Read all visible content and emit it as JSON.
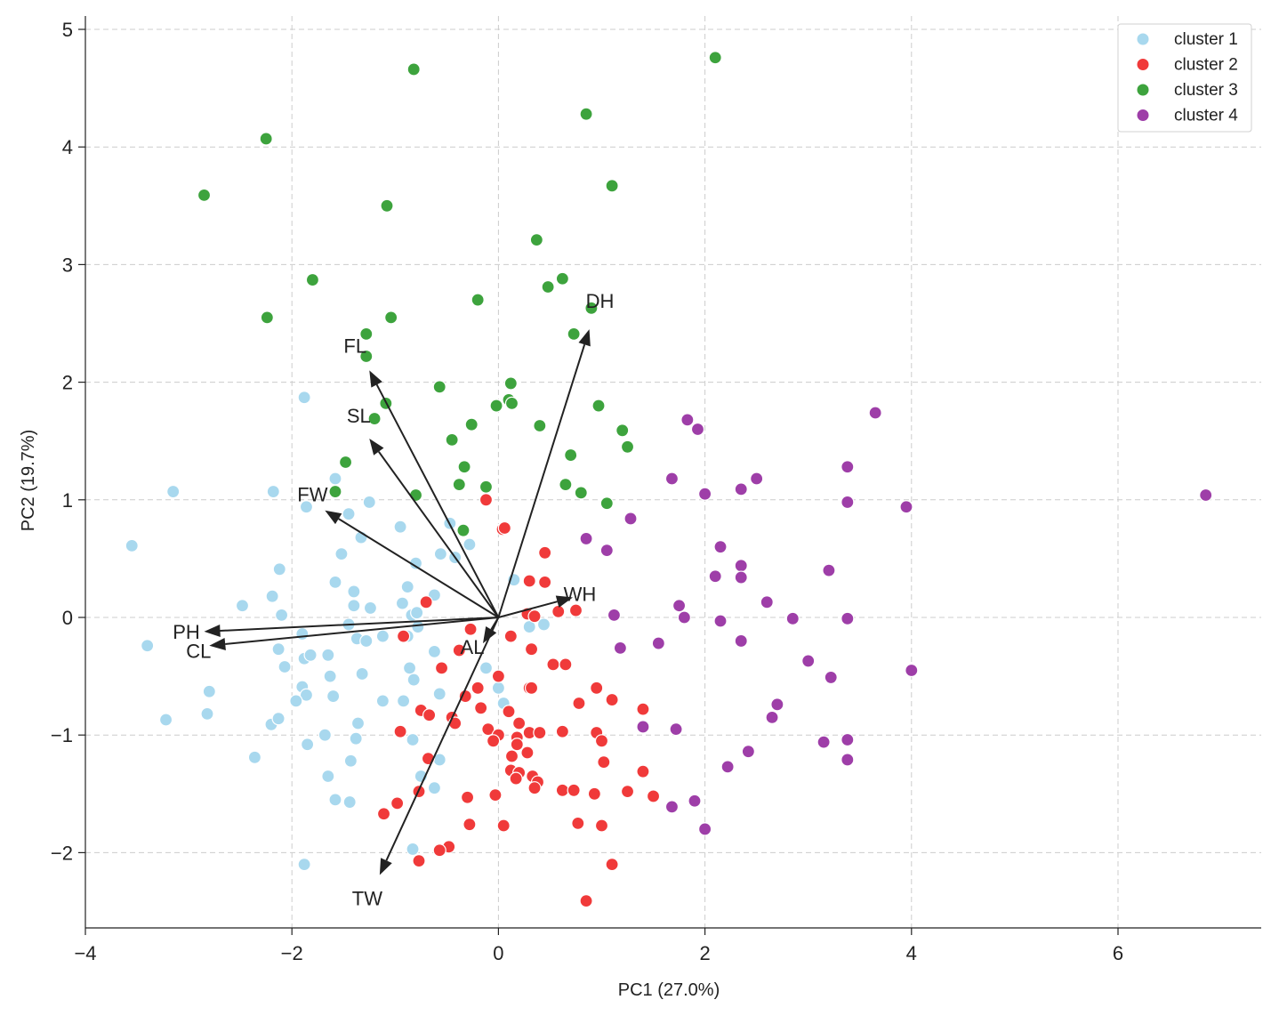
{
  "chart_data": {
    "type": "scatter",
    "title": "",
    "xlabel": "PC1 (27.0%)",
    "ylabel": "PC2 (19.7%)",
    "xlim": [
      -4,
      7.4
    ],
    "ylim": [
      -2.6,
      5.1
    ],
    "xticks": [
      -4,
      -2,
      0,
      2,
      4,
      6
    ],
    "xtick_labels": [
      "−4",
      "−2",
      "0",
      "2",
      "4",
      "6"
    ],
    "yticks": [
      -2,
      -1,
      0,
      1,
      2,
      3,
      4,
      5
    ],
    "ytick_labels": [
      "−2",
      "−1",
      "0",
      "1",
      "2",
      "3",
      "4",
      "5"
    ],
    "grid": true,
    "legend_position": "top-right",
    "series": [
      {
        "name": "cluster 1",
        "color": "#a8d8ee",
        "points": [
          [
            -3.55,
            0.61
          ],
          [
            -3.4,
            -0.24
          ],
          [
            -3.15,
            1.07
          ],
          [
            -3.22,
            -0.87
          ],
          [
            -2.82,
            -0.82
          ],
          [
            -2.8,
            -0.63
          ],
          [
            -2.48,
            0.1
          ],
          [
            -2.36,
            -1.19
          ],
          [
            -2.18,
            1.07
          ],
          [
            -2.19,
            0.18
          ],
          [
            -2.12,
            0.41
          ],
          [
            -2.1,
            0.02
          ],
          [
            -2.13,
            -0.27
          ],
          [
            -2.07,
            -0.42
          ],
          [
            -2.2,
            -0.91
          ],
          [
            -2.13,
            -0.86
          ],
          [
            -1.88,
            1.87
          ],
          [
            -1.86,
            0.94
          ],
          [
            -1.9,
            -0.14
          ],
          [
            -1.88,
            -0.35
          ],
          [
            -1.82,
            -0.32
          ],
          [
            -1.9,
            -0.59
          ],
          [
            -1.86,
            -0.66
          ],
          [
            -1.96,
            -0.71
          ],
          [
            -1.85,
            -1.08
          ],
          [
            -1.88,
            -2.1
          ],
          [
            -1.68,
            -1.0
          ],
          [
            -1.65,
            -0.32
          ],
          [
            -1.63,
            -0.5
          ],
          [
            -1.6,
            -0.67
          ],
          [
            -1.58,
            1.18
          ],
          [
            -1.58,
            0.3
          ],
          [
            -1.52,
            0.54
          ],
          [
            -1.65,
            -1.35
          ],
          [
            -1.58,
            -1.55
          ],
          [
            -1.45,
            0.88
          ],
          [
            -1.4,
            0.22
          ],
          [
            -1.4,
            0.1
          ],
          [
            -1.45,
            -0.06
          ],
          [
            -1.37,
            -0.18
          ],
          [
            -1.43,
            -1.22
          ],
          [
            -1.36,
            -0.9
          ],
          [
            -1.38,
            -1.03
          ],
          [
            -1.44,
            -1.57
          ],
          [
            -1.33,
            0.68
          ],
          [
            -1.25,
            0.98
          ],
          [
            -1.24,
            0.08
          ],
          [
            -1.32,
            -0.48
          ],
          [
            -1.28,
            -0.2
          ],
          [
            -1.12,
            -0.16
          ],
          [
            -1.12,
            -0.71
          ],
          [
            -0.95,
            0.77
          ],
          [
            -0.93,
            0.12
          ],
          [
            -0.88,
            0.26
          ],
          [
            -0.84,
            0.02
          ],
          [
            -0.88,
            -0.16
          ],
          [
            -0.86,
            -0.43
          ],
          [
            -0.82,
            -0.53
          ],
          [
            -0.92,
            -0.71
          ],
          [
            -0.83,
            -1.04
          ],
          [
            -0.8,
            0.46
          ],
          [
            -0.79,
            0.04
          ],
          [
            -0.78,
            -0.08
          ],
          [
            -0.83,
            -1.97
          ],
          [
            -0.75,
            -1.35
          ],
          [
            -0.62,
            0.19
          ],
          [
            -0.56,
            0.54
          ],
          [
            -0.62,
            -0.29
          ],
          [
            -0.57,
            -0.65
          ],
          [
            -0.57,
            -1.21
          ],
          [
            -0.62,
            -1.45
          ],
          [
            -0.47,
            0.8
          ],
          [
            -0.42,
            0.51
          ],
          [
            -0.28,
            0.62
          ],
          [
            -0.12,
            -0.43
          ],
          [
            0.0,
            -0.6
          ],
          [
            0.05,
            -0.73
          ],
          [
            0.15,
            0.32
          ],
          [
            0.3,
            -0.08
          ],
          [
            0.44,
            -0.06
          ]
        ]
      },
      {
        "name": "cluster 2",
        "color": "#f03a3a",
        "points": [
          [
            -0.12,
            1.0
          ],
          [
            0.04,
            0.75
          ],
          [
            0.06,
            0.76
          ],
          [
            0.45,
            0.55
          ],
          [
            0.3,
            0.31
          ],
          [
            0.45,
            0.3
          ],
          [
            0.28,
            0.03
          ],
          [
            0.35,
            0.01
          ],
          [
            0.58,
            0.05
          ],
          [
            0.75,
            0.06
          ],
          [
            -0.7,
            0.13
          ],
          [
            -0.92,
            -0.16
          ],
          [
            -0.27,
            -0.1
          ],
          [
            -0.38,
            -0.28
          ],
          [
            0.12,
            -0.16
          ],
          [
            0.32,
            -0.27
          ],
          [
            -0.55,
            -0.43
          ],
          [
            0.53,
            -0.4
          ],
          [
            0.65,
            -0.4
          ],
          [
            -0.2,
            -0.6
          ],
          [
            0.0,
            -0.5
          ],
          [
            0.3,
            -0.6
          ],
          [
            0.32,
            -0.6
          ],
          [
            0.95,
            -0.6
          ],
          [
            -0.32,
            -0.67
          ],
          [
            0.1,
            -0.8
          ],
          [
            0.2,
            -0.9
          ],
          [
            -0.17,
            -0.77
          ],
          [
            0.78,
            -0.73
          ],
          [
            1.1,
            -0.7
          ],
          [
            1.4,
            -0.78
          ],
          [
            -0.75,
            -0.79
          ],
          [
            -0.45,
            -0.85
          ],
          [
            -0.42,
            -0.9
          ],
          [
            -0.67,
            -0.83
          ],
          [
            -0.95,
            -0.97
          ],
          [
            -0.1,
            -0.95
          ],
          [
            0.0,
            -1.0
          ],
          [
            0.18,
            -1.02
          ],
          [
            -0.05,
            -1.05
          ],
          [
            0.18,
            -1.08
          ],
          [
            0.3,
            -0.98
          ],
          [
            0.4,
            -0.98
          ],
          [
            0.62,
            -0.97
          ],
          [
            0.95,
            -0.98
          ],
          [
            1.0,
            -1.05
          ],
          [
            0.13,
            -1.18
          ],
          [
            0.28,
            -1.15
          ],
          [
            -0.68,
            -1.2
          ],
          [
            1.02,
            -1.23
          ],
          [
            0.12,
            -1.3
          ],
          [
            0.2,
            -1.32
          ],
          [
            0.17,
            -1.37
          ],
          [
            0.33,
            -1.35
          ],
          [
            0.38,
            -1.4
          ],
          [
            0.35,
            -1.45
          ],
          [
            0.62,
            -1.47
          ],
          [
            0.73,
            -1.47
          ],
          [
            -0.77,
            -1.48
          ],
          [
            0.93,
            -1.5
          ],
          [
            1.25,
            -1.48
          ],
          [
            1.4,
            -1.31
          ],
          [
            1.5,
            -1.52
          ],
          [
            -0.03,
            -1.51
          ],
          [
            -0.3,
            -1.53
          ],
          [
            -0.98,
            -1.58
          ],
          [
            -1.11,
            -1.67
          ],
          [
            -0.28,
            -1.76
          ],
          [
            0.05,
            -1.77
          ],
          [
            0.77,
            -1.75
          ],
          [
            1.0,
            -1.77
          ],
          [
            -0.48,
            -1.95
          ],
          [
            -0.57,
            -1.98
          ],
          [
            -0.77,
            -2.07
          ],
          [
            1.1,
            -2.1
          ],
          [
            0.85,
            -2.41
          ]
        ]
      },
      {
        "name": "cluster 3",
        "color": "#3da33d",
        "points": [
          [
            -0.82,
            4.66
          ],
          [
            2.1,
            4.76
          ],
          [
            -2.25,
            4.07
          ],
          [
            0.85,
            4.28
          ],
          [
            -2.85,
            3.59
          ],
          [
            -1.08,
            3.5
          ],
          [
            1.1,
            3.67
          ],
          [
            0.37,
            3.21
          ],
          [
            -1.8,
            2.87
          ],
          [
            0.48,
            2.81
          ],
          [
            0.62,
            2.88
          ],
          [
            -2.24,
            2.55
          ],
          [
            -1.04,
            2.55
          ],
          [
            -0.2,
            2.7
          ],
          [
            0.9,
            2.63
          ],
          [
            -1.28,
            2.41
          ],
          [
            -1.28,
            2.22
          ],
          [
            0.73,
            2.41
          ],
          [
            -1.09,
            1.82
          ],
          [
            -1.2,
            1.69
          ],
          [
            -0.57,
            1.96
          ],
          [
            0.1,
            1.85
          ],
          [
            0.12,
            1.99
          ],
          [
            -0.02,
            1.8
          ],
          [
            0.13,
            1.82
          ],
          [
            0.97,
            1.8
          ],
          [
            -0.26,
            1.64
          ],
          [
            -0.45,
            1.51
          ],
          [
            0.4,
            1.63
          ],
          [
            1.2,
            1.59
          ],
          [
            1.25,
            1.45
          ],
          [
            -1.48,
            1.32
          ],
          [
            -0.33,
            1.28
          ],
          [
            0.7,
            1.38
          ],
          [
            -1.58,
            1.07
          ],
          [
            -0.8,
            1.04
          ],
          [
            -0.38,
            1.13
          ],
          [
            -0.12,
            1.11
          ],
          [
            0.65,
            1.13
          ],
          [
            0.8,
            1.06
          ],
          [
            1.05,
            0.97
          ],
          [
            -0.34,
            0.74
          ]
        ]
      },
      {
        "name": "cluster 4",
        "color": "#9e3ea8",
        "points": [
          [
            6.85,
            1.04
          ],
          [
            3.65,
            1.74
          ],
          [
            1.83,
            1.68
          ],
          [
            1.93,
            1.6
          ],
          [
            3.38,
            1.28
          ],
          [
            1.68,
            1.18
          ],
          [
            2.5,
            1.18
          ],
          [
            2.35,
            1.09
          ],
          [
            2.0,
            1.05
          ],
          [
            3.38,
            0.98
          ],
          [
            3.95,
            0.94
          ],
          [
            1.28,
            0.84
          ],
          [
            0.85,
            0.67
          ],
          [
            1.05,
            0.57
          ],
          [
            2.15,
            0.6
          ],
          [
            2.35,
            0.44
          ],
          [
            2.1,
            0.35
          ],
          [
            2.35,
            0.34
          ],
          [
            3.2,
            0.4
          ],
          [
            1.75,
            0.1
          ],
          [
            2.6,
            0.13
          ],
          [
            1.12,
            0.02
          ],
          [
            1.8,
            0.0
          ],
          [
            2.15,
            -0.03
          ],
          [
            2.85,
            -0.01
          ],
          [
            3.38,
            -0.01
          ],
          [
            1.55,
            -0.22
          ],
          [
            1.18,
            -0.26
          ],
          [
            2.35,
            -0.2
          ],
          [
            3.0,
            -0.37
          ],
          [
            3.22,
            -0.51
          ],
          [
            4.0,
            -0.45
          ],
          [
            2.7,
            -0.74
          ],
          [
            2.65,
            -0.85
          ],
          [
            1.4,
            -0.93
          ],
          [
            1.72,
            -0.95
          ],
          [
            3.38,
            -1.04
          ],
          [
            3.15,
            -1.06
          ],
          [
            2.42,
            -1.14
          ],
          [
            3.38,
            -1.21
          ],
          [
            2.22,
            -1.27
          ],
          [
            1.9,
            -1.56
          ],
          [
            1.68,
            -1.61
          ],
          [
            2.0,
            -1.8
          ]
        ]
      }
    ],
    "loadings": [
      {
        "name": "DH",
        "x": 0.88,
        "y": 2.45,
        "label": "DH"
      },
      {
        "name": "FL",
        "x": -1.25,
        "y": 2.1,
        "label": "FL"
      },
      {
        "name": "SL",
        "x": -1.25,
        "y": 1.52,
        "label": "SL"
      },
      {
        "name": "FW",
        "x": -1.68,
        "y": 0.91,
        "label": "FW"
      },
      {
        "name": "PH",
        "x": -2.85,
        "y": -0.12,
        "label": "PH"
      },
      {
        "name": "CL",
        "x": -2.8,
        "y": -0.24,
        "label": "CL"
      },
      {
        "name": "WH",
        "x": 0.72,
        "y": 0.17,
        "label": "WH"
      },
      {
        "name": "AL",
        "x": -0.15,
        "y": -0.22,
        "label": "AL"
      },
      {
        "name": "TW",
        "x": -1.15,
        "y": -2.19,
        "label": "TW"
      }
    ]
  }
}
